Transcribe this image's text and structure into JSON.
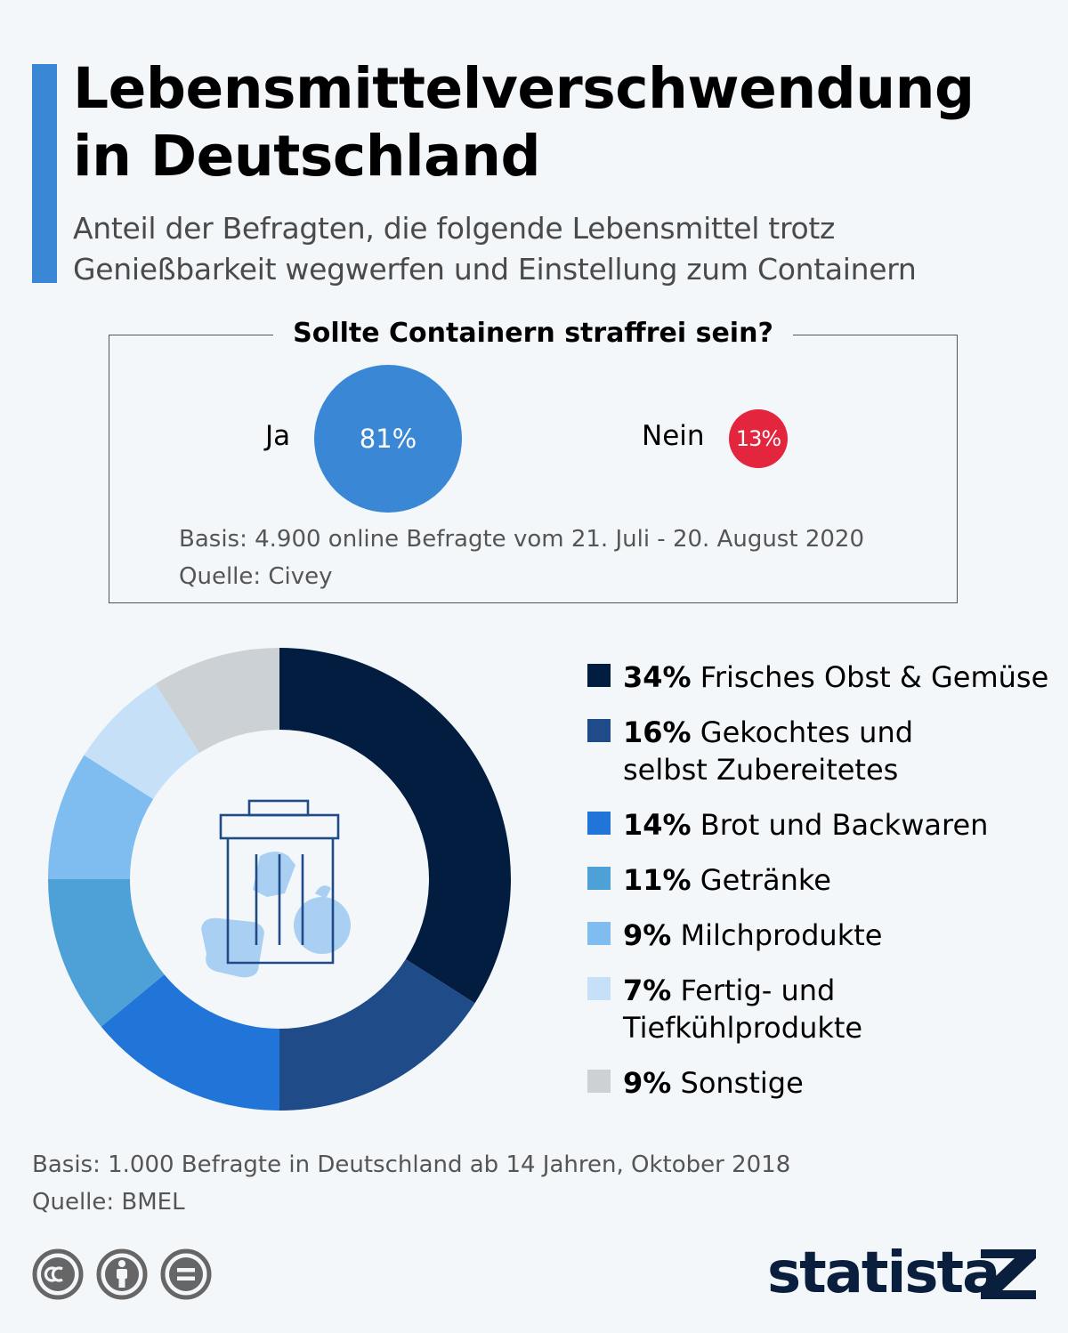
{
  "header": {
    "title_line1": "Lebensmittelverschwendung",
    "title_line2": "in Deutschland",
    "subtitle_line1": "Anteil der Befragten, die folgende Lebensmittel trotz",
    "subtitle_line2": "Genießbarkeit wegwerfen und Einstellung zum Containern"
  },
  "survey": {
    "question": "Sollte Containern straffrei sein?",
    "answers": [
      {
        "label": "Ja",
        "value_label": "81%",
        "value": 81,
        "color": "#3a87d6"
      },
      {
        "label": "Nein",
        "value_label": "13%",
        "value": 13,
        "color": "#e3263e"
      }
    ],
    "basis": "Basis: 4.900 online Befragte vom 21. Juli - 20. August 2020",
    "source": "Quelle: Civey"
  },
  "chart_data": {
    "type": "pie",
    "donut": true,
    "legend_position": "right",
    "categories": [
      "Frisches Obst & Gemüse",
      "Gekochtes und selbst Zubereitetes",
      "Brot und Backwaren",
      "Getränke",
      "Milchprodukte",
      "Fertig- und Tiefkühlprodukte",
      "Sonstige"
    ],
    "values": [
      34,
      16,
      14,
      11,
      9,
      7,
      9
    ],
    "unit": "%",
    "colors": [
      "#031d40",
      "#1f4b89",
      "#2174d8",
      "#4da1d6",
      "#7fbcef",
      "#c5e0f7",
      "#ccd1d5"
    ],
    "legend": [
      {
        "value_label": "34%",
        "line1": "Frisches Obst & Gemüse",
        "line2": ""
      },
      {
        "value_label": "16%",
        "line1": "Gekochtes und",
        "line2": "selbst Zubereitetes"
      },
      {
        "value_label": "14%",
        "line1": "Brot und Backwaren",
        "line2": ""
      },
      {
        "value_label": "11%",
        "line1": "Getränke",
        "line2": ""
      },
      {
        "value_label": "9%",
        "line1": "Milchprodukte",
        "line2": ""
      },
      {
        "value_label": "7%",
        "line1": "Fertig- und",
        "line2": "Tiefkühlprodukte"
      },
      {
        "value_label": "9%",
        "line1": "Sonstige",
        "line2": ""
      }
    ]
  },
  "footer": {
    "basis": "Basis: 1.000 Befragte in Deutschland ab 14 Jahren, Oktober 2018",
    "source": "Quelle: BMEL",
    "brand": "statista",
    "license_icons": [
      "creative-commons-icon",
      "attribution-icon",
      "no-derivatives-icon"
    ]
  },
  "colors": {
    "accent_bar": "#3a87d6",
    "background": "#f3f7fa",
    "brand": "#0a1e3e",
    "trash_outline": "#1f4b89",
    "trash_food": "#a9d0f2"
  }
}
